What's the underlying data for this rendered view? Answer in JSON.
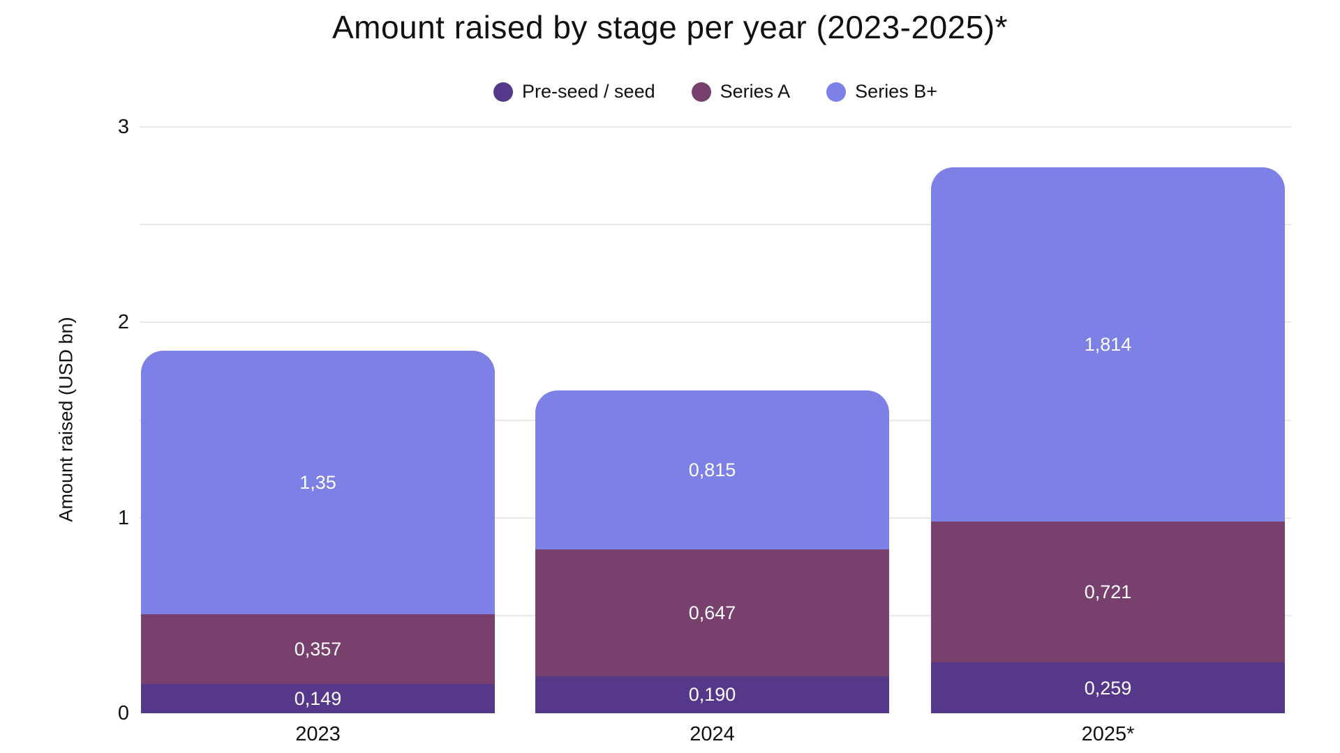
{
  "chart_data": {
    "type": "bar",
    "stacked": true,
    "title": "Amount raised by stage per year (2023-2025)*",
    "ylabel": "Amount raised (USD bn)",
    "xlabel": "",
    "categories": [
      "2023",
      "2024",
      "2025*"
    ],
    "series": [
      {
        "name": "Pre-seed / seed",
        "color": "#553889",
        "values": [
          0.149,
          0.19,
          0.259
        ],
        "labels": [
          "0,149",
          "0,190",
          "0,259"
        ]
      },
      {
        "name": "Series A",
        "color": "#78406C",
        "values": [
          0.357,
          0.647,
          0.721
        ],
        "labels": [
          "0,357",
          "0,647",
          "0,721"
        ]
      },
      {
        "name": "Series B+",
        "color": "#7D80E4",
        "values": [
          1.35,
          0.815,
          1.814
        ],
        "labels": [
          "1,35",
          "0,815",
          "1,814"
        ]
      }
    ],
    "totals": [
      1.856,
      1.652,
      2.794
    ],
    "ylim": [
      0,
      3
    ],
    "yticks": [
      "0",
      "1",
      "2",
      "3"
    ],
    "minor_gridlines": [
      0.5,
      1.5,
      2.5
    ],
    "grid": true,
    "legend_position": "top-center",
    "value_label_color": "#ffffff",
    "background_color": "#ffffff",
    "gridline_color": "#e9e9e9",
    "text_color": "#111111"
  }
}
